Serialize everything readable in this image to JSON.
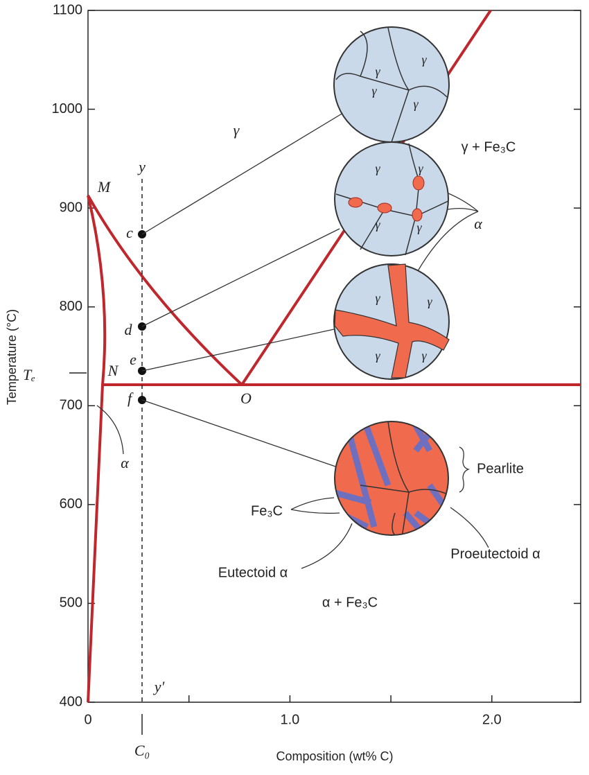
{
  "axes": {
    "y_label": "Temperature (°C)",
    "x_label": "Composition (wt% C)",
    "xlim": [
      0,
      2.44
    ],
    "ylim": [
      400,
      1100
    ],
    "yticks": [
      400,
      500,
      600,
      700,
      800,
      900,
      1000,
      1100
    ],
    "xticks": [
      {
        "value": 0,
        "label": "0"
      },
      {
        "value": 1,
        "label": "1.0"
      },
      {
        "value": 2,
        "label": "2.0"
      }
    ],
    "xticks_minor": [
      0.5,
      1.5
    ]
  },
  "labels": [
    "γ",
    "γ + Fe₃C",
    "M",
    "N",
    "O",
    "Tₑ",
    "α",
    "y",
    "y′",
    "c",
    "d",
    "e",
    "f",
    "C₀",
    "α",
    "Pearlite",
    "Fe₃C",
    "Eutectoid α",
    "Proeutectoid α",
    "α + Fe₃C"
  ],
  "grain_labels": [
    "γ",
    "γ",
    "γ",
    "γ",
    "γ",
    "γ",
    "γ",
    "γ",
    "γ",
    "γ",
    "γ",
    "γ"
  ]
}
